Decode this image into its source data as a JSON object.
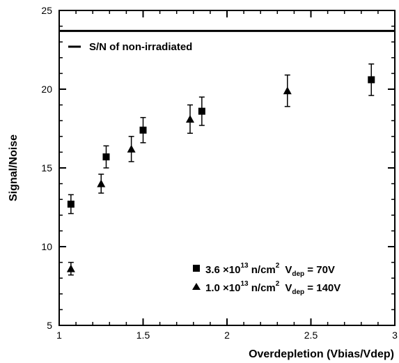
{
  "chart_data": {
    "type": "scatter",
    "xlabel": "Overdepletion (Vbias/Vdep)",
    "ylabel": "Signal/Noise",
    "xlim": [
      1,
      3
    ],
    "ylim": [
      5,
      25
    ],
    "x_ticks": [
      "1",
      "1.5",
      "2",
      "2.5",
      "3"
    ],
    "y_ticks": [
      "5",
      "10",
      "15",
      "20",
      "25"
    ],
    "reference_line": {
      "y": 23.7,
      "label": "S/N of non-irradiated"
    },
    "series": [
      {
        "name": "3.6 ×10^13 n/cm^2  V_dep = 70V",
        "marker": "square",
        "points": [
          {
            "x": 1.07,
            "y": 12.7,
            "err": 0.6
          },
          {
            "x": 1.28,
            "y": 15.7,
            "err": 0.7
          },
          {
            "x": 1.5,
            "y": 17.4,
            "err": 0.8
          },
          {
            "x": 1.85,
            "y": 18.6,
            "err": 0.9
          },
          {
            "x": 2.86,
            "y": 20.6,
            "err": 1.0
          }
        ]
      },
      {
        "name": "1.0 ×10^13 n/cm^2  V_dep = 140V",
        "marker": "triangle",
        "points": [
          {
            "x": 1.07,
            "y": 8.6,
            "err": 0.4
          },
          {
            "x": 1.25,
            "y": 14.0,
            "err": 0.6
          },
          {
            "x": 1.43,
            "y": 16.2,
            "err": 0.8
          },
          {
            "x": 1.78,
            "y": 18.1,
            "err": 0.9
          },
          {
            "x": 2.36,
            "y": 19.9,
            "err": 1.0
          }
        ]
      }
    ],
    "legend": {
      "ref": "S/N of non-irradiated",
      "s1": {
        "base": "3.6 ×10",
        "exp": "13",
        "unit": " n/cm",
        "unit_exp": "2",
        "vpre": "V",
        "vsub": "dep",
        "vval": " = 70V"
      },
      "s2": {
        "base": "1.0 ×10",
        "exp": "13",
        "unit": " n/cm",
        "unit_exp": "2",
        "vpre": "V",
        "vsub": "dep",
        "vval": " = 140V"
      }
    }
  }
}
